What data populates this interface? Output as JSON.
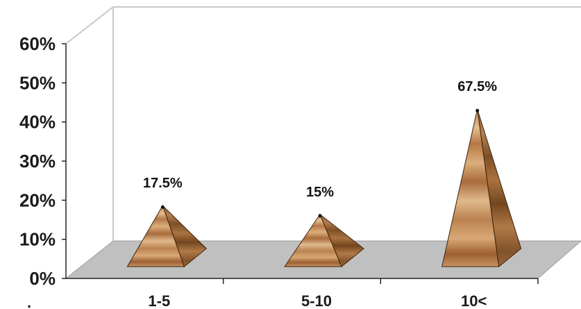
{
  "chart_data": {
    "type": "bar",
    "shape": "3d-pyramid",
    "categories": [
      "1-5",
      "5-10",
      "10<"
    ],
    "values": [
      17.5,
      15,
      67.5
    ],
    "data_labels": [
      "17.5%",
      "15%",
      "67.5%"
    ],
    "y_ticks": [
      "0%",
      "10%",
      "20%",
      "30%",
      "40%",
      "50%",
      "60%"
    ],
    "ylim": [
      0,
      60
    ],
    "stray_axis_mark": ".",
    "grid": false,
    "legend": "none",
    "colors": {
      "floor": "#c0c0c0",
      "wall_edge": "#c8c8c8",
      "wood_light": "#e0b98c",
      "wood_mid": "#c48a55",
      "wood_dark": "#7e4f27"
    }
  }
}
